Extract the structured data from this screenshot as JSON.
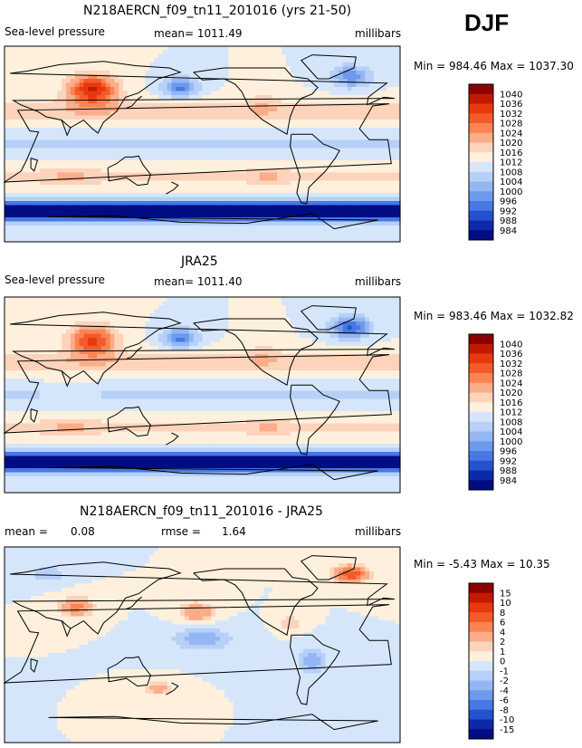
{
  "season": "DJF",
  "chart_data": [
    {
      "type": "heatmap",
      "title": "N218AERCN_f09_tn11_201016 (yrs 21-50)",
      "variable": "Sea-level pressure",
      "mean_text": "mean= 1011.49",
      "units": "millibars",
      "min": 984.46,
      "max": 1037.3,
      "minmax_text": "Min = 984.46 Max = 1037.30",
      "colorbar_levels": [
        "1040",
        "1036",
        "1032",
        "1028",
        "1024",
        "1020",
        "1016",
        "1012",
        "1008",
        "1004",
        "1000",
        "996",
        "992",
        "988",
        "984"
      ],
      "colorbar_colors": [
        "#8b0000",
        "#c21a00",
        "#e8390e",
        "#f55a2a",
        "#fb8454",
        "#fbac88",
        "#fdd3bb",
        "#fef0dc",
        "#d5e6fb",
        "#b6d0f8",
        "#94b7f3",
        "#6e9aec",
        "#4778e4",
        "#2452cf",
        "#0c2aa8",
        "#000d82"
      ],
      "field": "slp"
    },
    {
      "type": "heatmap",
      "title": "JRA25",
      "variable": "Sea-level pressure",
      "mean_text": "mean= 1011.40",
      "units": "millibars",
      "min": 983.46,
      "max": 1032.82,
      "minmax_text": "Min = 983.46 Max = 1032.82",
      "colorbar_levels": [
        "1040",
        "1036",
        "1032",
        "1028",
        "1024",
        "1020",
        "1016",
        "1012",
        "1008",
        "1004",
        "1000",
        "996",
        "992",
        "988",
        "984"
      ],
      "colorbar_colors": [
        "#8b0000",
        "#c21a00",
        "#e8390e",
        "#f55a2a",
        "#fb8454",
        "#fbac88",
        "#fdd3bb",
        "#fef0dc",
        "#d5e6fb",
        "#b6d0f8",
        "#94b7f3",
        "#6e9aec",
        "#4778e4",
        "#2452cf",
        "#0c2aa8",
        "#000d82"
      ],
      "field": "slp2"
    },
    {
      "type": "heatmap",
      "title": "N218AERCN_f09_tn11_201016 - JRA25",
      "mean_label": "mean =",
      "mean_value": "0.08",
      "rmse_label": "rmse =",
      "rmse_value": "1.64",
      "units": "millibars",
      "min": -5.43,
      "max": 10.35,
      "minmax_text": "Min =  -5.43 Max =  10.35",
      "colorbar_levels": [
        "15",
        "10",
        "8",
        "6",
        "4",
        "2",
        "1",
        "0",
        "-1",
        "-2",
        "-4",
        "-6",
        "-8",
        "-10",
        "-15"
      ],
      "colorbar_colors": [
        "#8b0000",
        "#c21a00",
        "#e8390e",
        "#f55a2a",
        "#fb8454",
        "#fbac88",
        "#fdd3bb",
        "#fef0dc",
        "#d5e6fb",
        "#b6d0f8",
        "#94b7f3",
        "#6e9aec",
        "#4778e4",
        "#2452cf",
        "#0c2aa8",
        "#000d82"
      ],
      "field": "diff"
    }
  ]
}
